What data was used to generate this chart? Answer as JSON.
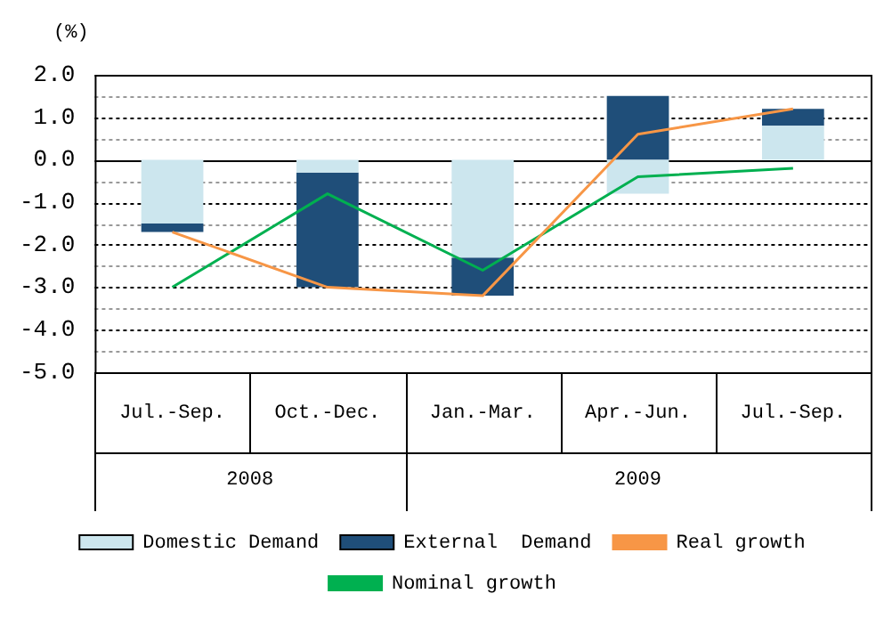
{
  "chart_data": {
    "type": "bar",
    "stacked": true,
    "ylabel": "(%)",
    "categories": [
      "Jul.-Sep.",
      "Oct.-Dec.",
      "Jan.-Mar.",
      "Apr.-Jun.",
      "Jul.-Sep."
    ],
    "series": [
      {
        "name": "Domestic Demand",
        "color": "#cce6ee",
        "values": [
          -1.5,
          -0.3,
          -2.3,
          -0.8,
          0.8
        ]
      },
      {
        "name": "External  Demand",
        "color": "#1f4e79",
        "values": [
          -0.2,
          -2.7,
          -0.9,
          1.5,
          0.4
        ]
      },
      {
        "name": "Real growth",
        "type": "line",
        "color": "#f79646",
        "values": [
          -1.7,
          -3.0,
          -3.2,
          0.6,
          1.2
        ]
      },
      {
        "name": "Nominal growth",
        "type": "line",
        "color": "#00b050",
        "values": [
          -3.0,
          -0.8,
          -2.6,
          -0.4,
          -0.2
        ]
      }
    ],
    "ylim": [
      -5,
      2
    ],
    "yticks": [
      {
        "value": -5,
        "label": "-5.0"
      },
      {
        "value": -4.5,
        "label": null
      },
      {
        "value": -4,
        "label": "-4.0"
      },
      {
        "value": -3.5,
        "label": null
      },
      {
        "value": -3,
        "label": "-3.0"
      },
      {
        "value": -2.5,
        "label": null
      },
      {
        "value": -2,
        "label": "-2.0"
      },
      {
        "value": -1.5,
        "label": null
      },
      {
        "value": -1,
        "label": "-1.0"
      },
      {
        "value": -0.5,
        "label": null
      },
      {
        "value": 0,
        "label": "0.0"
      },
      {
        "value": 0.5,
        "label": null
      },
      {
        "value": 1,
        "label": "1.0"
      },
      {
        "value": 1.5,
        "label": null
      },
      {
        "value": 2,
        "label": "2.0"
      }
    ],
    "grid": "y",
    "legend": "bottom",
    "marker": "none",
    "line_style": "solid",
    "annotations": [
      "2008",
      "2009"
    ]
  }
}
